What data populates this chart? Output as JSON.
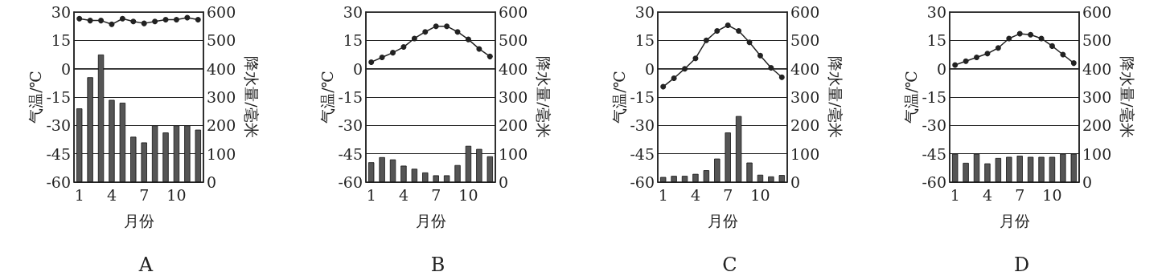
{
  "chart_data": [
    {
      "type": "bar",
      "title": "A",
      "xlabel": "月份",
      "ylabel": "气温/℃",
      "y2label": "降水量/毫米",
      "categories": [
        "1",
        null,
        null,
        "4",
        null,
        null,
        "7",
        null,
        null,
        "10",
        null,
        null
      ],
      "ylim": [
        -60,
        30
      ],
      "yticks": [
        -60,
        -45,
        -30,
        -15,
        0,
        15,
        30
      ],
      "y2lim": [
        0,
        600
      ],
      "y2ticks": [
        0,
        100,
        200,
        300,
        400,
        500,
        600
      ],
      "grid": "y",
      "marker": "circle",
      "series": [
        {
          "axis": "y2",
          "color": "#555555",
          "values": [
            260,
            370,
            450,
            290,
            280,
            160,
            140,
            200,
            175,
            200,
            200,
            185
          ]
        },
        {
          "type": "line",
          "axis": "y",
          "color": "#222222",
          "values": [
            26.5,
            25.5,
            25.5,
            23.5,
            26.5,
            25,
            24,
            25,
            26,
            26,
            27,
            26
          ]
        }
      ]
    },
    {
      "type": "bar",
      "title": "B",
      "xlabel": "月份",
      "ylabel": "气温/℃",
      "y2label": "降水量/毫米",
      "categories": [
        "1",
        null,
        null,
        "4",
        null,
        null,
        "7",
        null,
        null,
        "10",
        null,
        null
      ],
      "ylim": [
        -60,
        30
      ],
      "yticks": [
        -60,
        -45,
        -30,
        -15,
        0,
        15,
        30
      ],
      "y2lim": [
        0,
        600
      ],
      "y2ticks": [
        0,
        100,
        200,
        300,
        400,
        500,
        600
      ],
      "grid": "y",
      "marker": "circle",
      "series": [
        {
          "axis": "y2",
          "color": "#555555",
          "values": [
            70,
            88,
            80,
            58,
            47,
            34,
            24,
            24,
            60,
            128,
            117,
            91
          ]
        },
        {
          "type": "line",
          "axis": "y",
          "color": "#222222",
          "values": [
            3.5,
            6,
            8.5,
            11.5,
            16,
            19.5,
            22.5,
            22.5,
            19.5,
            15.5,
            10.5,
            6.5
          ]
        }
      ]
    },
    {
      "type": "bar",
      "title": "C",
      "xlabel": "月份",
      "ylabel": "气温/℃",
      "y2label": "降水量/毫米",
      "categories": [
        "1",
        null,
        null,
        "4",
        null,
        null,
        "7",
        null,
        null,
        "10",
        null,
        null
      ],
      "ylim": [
        -60,
        30
      ],
      "yticks": [
        -60,
        -45,
        -30,
        -15,
        0,
        15,
        30
      ],
      "y2lim": [
        0,
        600
      ],
      "y2ticks": [
        0,
        100,
        200,
        300,
        400,
        500,
        600
      ],
      "grid": "y",
      "marker": "circle",
      "series": [
        {
          "axis": "y2",
          "color": "#555555",
          "values": [
            18,
            22,
            22,
            29,
            42,
            83,
            175,
            233,
            69,
            26,
            20,
            25
          ]
        },
        {
          "type": "line",
          "axis": "y",
          "color": "#222222",
          "values": [
            -9.5,
            -5,
            0,
            5.5,
            15,
            20,
            23,
            20,
            14,
            7,
            0.5,
            -4.5
          ]
        }
      ]
    },
    {
      "type": "bar",
      "title": "D",
      "xlabel": "月份",
      "ylabel": "气温/℃",
      "y2label": "降水量/毫米",
      "categories": [
        "1",
        null,
        null,
        "4",
        null,
        null,
        "7",
        null,
        null,
        "10",
        null,
        null
      ],
      "ylim": [
        -60,
        30
      ],
      "yticks": [
        -60,
        -45,
        -30,
        -15,
        0,
        15,
        30
      ],
      "y2lim": [
        0,
        600
      ],
      "y2ticks": [
        0,
        100,
        200,
        300,
        400,
        500,
        600
      ],
      "grid": "y",
      "marker": "circle",
      "series": [
        {
          "axis": "y2",
          "color": "#555555",
          "values": [
            100,
            68,
            100,
            66,
            85,
            89,
            93,
            89,
            89,
            89,
            100,
            100
          ]
        },
        {
          "type": "line",
          "axis": "y",
          "color": "#222222",
          "values": [
            2,
            4,
            6,
            8,
            11,
            16,
            18.5,
            18,
            16,
            12,
            7.5,
            3
          ]
        }
      ]
    }
  ]
}
